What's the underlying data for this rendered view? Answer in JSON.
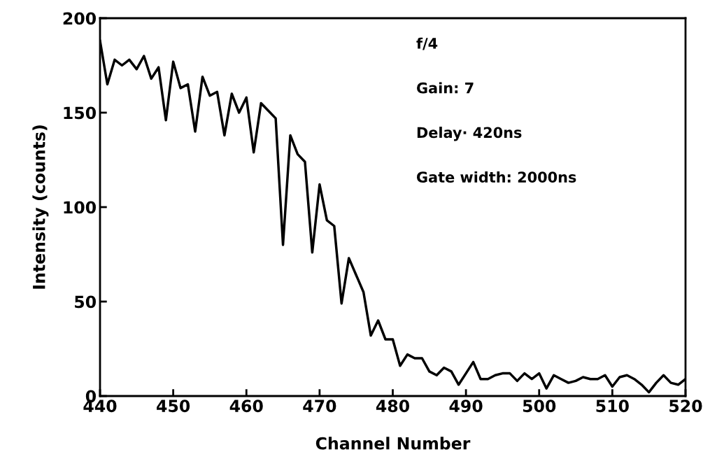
{
  "chart_data": {
    "type": "line",
    "xlabel": "Channel Number",
    "ylabel": "Intensity (counts)",
    "x": [
      440,
      441,
      442,
      443,
      444,
      445,
      446,
      447,
      448,
      449,
      450,
      451,
      452,
      453,
      454,
      455,
      456,
      457,
      458,
      459,
      460,
      461,
      462,
      463,
      464,
      465,
      466,
      467,
      468,
      469,
      470,
      471,
      472,
      473,
      474,
      475,
      476,
      477,
      478,
      479,
      480,
      481,
      482,
      483,
      484,
      485,
      486,
      487,
      488,
      489,
      490,
      491,
      492,
      493,
      494,
      495,
      496,
      497,
      498,
      499,
      500,
      501,
      502,
      503,
      504,
      505,
      506,
      507,
      508,
      509,
      510,
      511,
      512,
      513,
      514,
      515,
      516,
      517,
      518,
      519,
      520
    ],
    "series": [
      {
        "color": "#000000",
        "values": [
          188,
          165,
          178,
          175,
          178,
          173,
          180,
          168,
          174,
          146,
          177,
          163,
          165,
          140,
          169,
          159,
          161,
          138,
          160,
          150,
          158,
          129,
          155,
          151,
          147,
          80,
          138,
          128,
          124,
          76,
          112,
          93,
          90,
          49,
          73,
          64,
          55,
          32,
          40,
          30,
          30,
          16,
          22,
          20,
          20,
          13,
          11,
          15,
          13,
          6,
          12,
          18,
          9,
          9,
          11,
          12,
          12,
          8,
          12,
          9,
          12,
          4,
          11,
          9,
          7,
          8,
          10,
          9,
          9,
          11,
          5,
          10,
          11,
          9,
          6,
          2,
          7,
          11,
          7,
          6,
          9
        ]
      }
    ],
    "xlim": [
      440,
      520
    ],
    "xticks": [
      440,
      450,
      460,
      470,
      480,
      490,
      500,
      510,
      520
    ],
    "ylim": [
      0,
      200
    ],
    "yticks": [
      0,
      50,
      100,
      150,
      200
    ],
    "grid": false,
    "legend": false,
    "marker": "none",
    "line_style": "solid",
    "annotations": [
      "f/4",
      "Gain: 7",
      "Delay· 420ns",
      "Gate width: 2000ns"
    ]
  }
}
